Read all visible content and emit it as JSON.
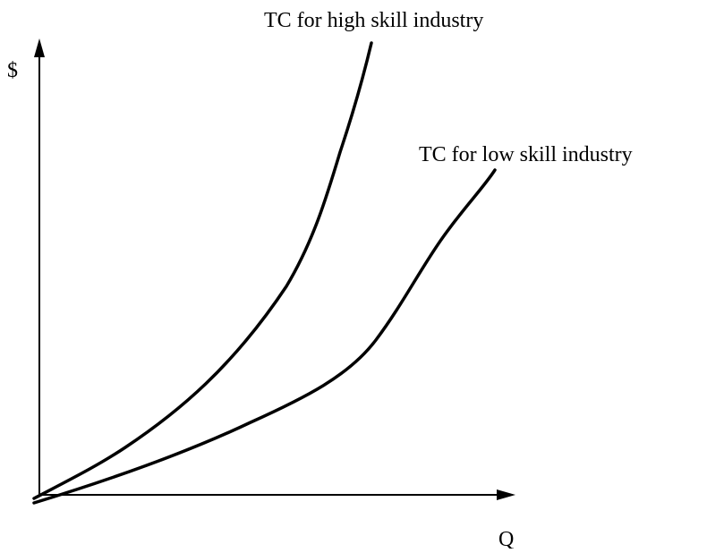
{
  "axes": {
    "y_label": "$",
    "x_label": "Q"
  },
  "curves": [
    {
      "label": "TC for high skill industry"
    },
    {
      "label": "TC for low skill industry"
    }
  ]
}
